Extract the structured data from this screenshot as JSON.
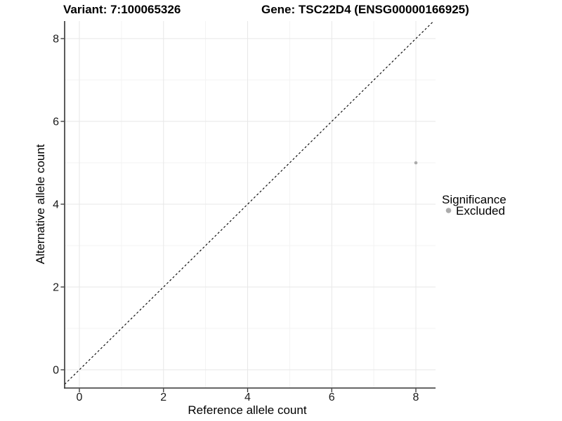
{
  "chart_data": {
    "type": "scatter",
    "title_left": "Variant: 7:100065326",
    "title_right": "Gene: TSC22D4 (ENSG00000166925)",
    "xlabel": "Reference allele count",
    "ylabel": "Alternative allele count",
    "xlim": [
      -0.4,
      8.4
    ],
    "ylim": [
      -0.4,
      8.4
    ],
    "x_major_ticks": [
      0,
      2,
      4,
      6,
      8
    ],
    "y_major_ticks": [
      0,
      2,
      4,
      6,
      8
    ],
    "x_minor_gridlines": [
      1,
      3,
      5,
      7
    ],
    "y_minor_gridlines": [
      1,
      3,
      5,
      7
    ],
    "grid": "major and minor, light gray on white",
    "legend_position": "right, vertically centered",
    "reference_line": {
      "type": "identity",
      "equation": "y = x",
      "style": "dashed",
      "color": "#000000"
    },
    "series": [
      {
        "name": "Excluded",
        "color": "#ababab",
        "points": [
          {
            "x": 8,
            "y": 5
          }
        ]
      }
    ],
    "legend": {
      "title": "Significance",
      "entries": [
        {
          "label": "Excluded",
          "color": "#ababab",
          "marker": "circle"
        }
      ]
    }
  },
  "colors": {
    "background": "#ffffff",
    "grid_major": "#e7e7e7",
    "grid_minor": "#f3f3f3",
    "axis_line": "#333333",
    "tick_mark": "#333333",
    "point": "#ababab",
    "reference_line": "#000000",
    "text": "#000000"
  }
}
